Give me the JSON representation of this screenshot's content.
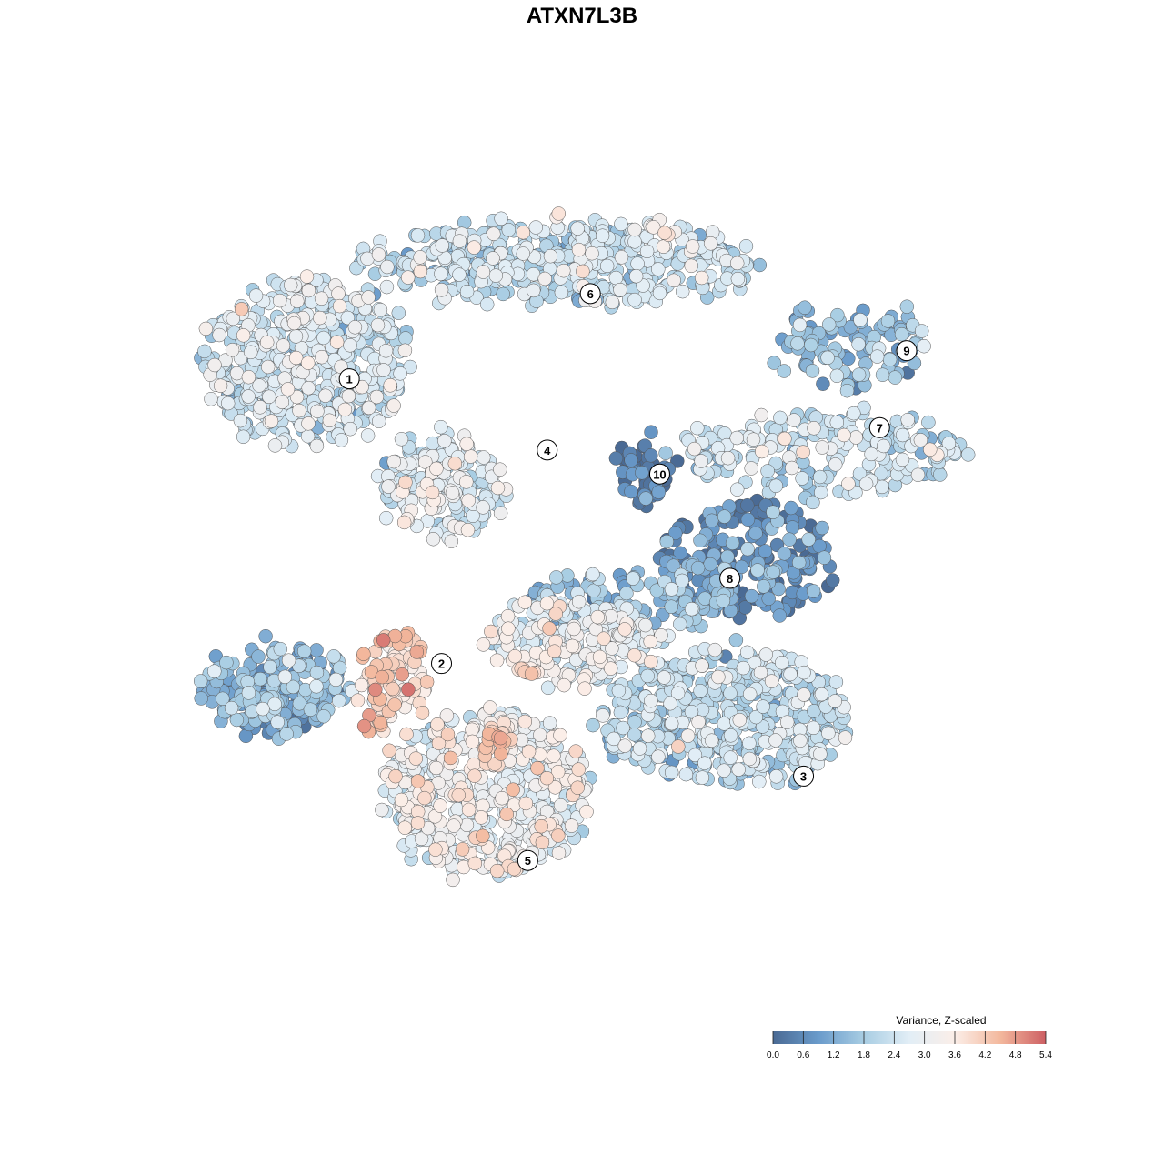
{
  "chart_data": {
    "type": "scatter",
    "title": "ATXN7L3B",
    "xlim": [
      0,
      100
    ],
    "ylim": [
      0,
      100
    ],
    "colorbar": {
      "title": "Variance, Z-scaled",
      "min": 0.0,
      "max": 5.4,
      "ticks": [
        "0.0",
        "0.6",
        "1.2",
        "1.8",
        "2.4",
        "3.0",
        "3.6",
        "4.2",
        "4.8",
        "5.4"
      ],
      "colors": [
        "#4a6a94",
        "#6a9bcb",
        "#a8cde3",
        "#e2eef6",
        "#fbeee8",
        "#f3b89d",
        "#cd5f63"
      ],
      "placement": "bottom-right"
    },
    "clusters": [
      {
        "label": "1",
        "x": 15,
        "y": 76,
        "rx": 12,
        "ry": 10,
        "value": 2.4,
        "n": 520
      },
      {
        "label": "2",
        "x": 11,
        "y": 37,
        "rx": 9,
        "ry": 5,
        "value": 1.4,
        "n": 170
      },
      {
        "label": "3",
        "x": 64,
        "y": 33,
        "rx": 15,
        "ry": 8,
        "value": 2.1,
        "n": 480
      },
      {
        "label": "4",
        "x": 31,
        "y": 61,
        "rx": 7,
        "ry": 6,
        "value": 2.7,
        "n": 190
      },
      {
        "label": "5",
        "x": 36,
        "y": 24,
        "rx": 12,
        "ry": 10,
        "value": 2.9,
        "n": 520
      },
      {
        "label": "6",
        "x": 45,
        "y": 88,
        "rx": 24,
        "ry": 5,
        "value": 2.2,
        "n": 480
      },
      {
        "label": "7",
        "x": 76,
        "y": 65,
        "rx": 17,
        "ry": 5,
        "value": 2.3,
        "n": 210
      },
      {
        "label": "8",
        "x": 67,
        "y": 52,
        "rx": 11,
        "ry": 7,
        "value": 0.8,
        "n": 210
      },
      {
        "label": "9",
        "x": 79,
        "y": 78,
        "rx": 9,
        "ry": 5,
        "value": 1.5,
        "n": 110
      },
      {
        "label": "10",
        "x": 55,
        "y": 63,
        "rx": 3,
        "ry": 4,
        "value": 0.3,
        "n": 50
      },
      {
        "label": "",
        "x": 46,
        "y": 42,
        "rx": 10,
        "ry": 5,
        "value": 2.8,
        "n": 240
      },
      {
        "label": "",
        "x": 11,
        "y": 34,
        "rx": 5,
        "ry": 3,
        "value": 0.7,
        "n": 70
      },
      {
        "label": "",
        "x": 25,
        "y": 37,
        "rx": 4,
        "ry": 7,
        "value": 3.9,
        "n": 90
      },
      {
        "label": "",
        "x": 53,
        "y": 47,
        "rx": 12,
        "ry": 3,
        "value": 1.5,
        "n": 120
      }
    ],
    "cluster_labels": [
      {
        "label": "1",
        "x": 19.8,
        "y": 74.0
      },
      {
        "label": "2",
        "x": 30.7,
        "y": 39.6
      },
      {
        "label": "3",
        "x": 73.5,
        "y": 26.0
      },
      {
        "label": "4",
        "x": 43.2,
        "y": 65.4
      },
      {
        "label": "5",
        "x": 40.9,
        "y": 15.8
      },
      {
        "label": "6",
        "x": 48.3,
        "y": 84.3
      },
      {
        "label": "7",
        "x": 82.5,
        "y": 68.1
      },
      {
        "label": "8",
        "x": 64.8,
        "y": 49.9
      },
      {
        "label": "9",
        "x": 85.7,
        "y": 77.4
      },
      {
        "label": "10",
        "x": 56.5,
        "y": 62.5
      }
    ],
    "hotspots": [
      {
        "x": 40,
        "y": 37,
        "value": 5.0
      },
      {
        "x": 37,
        "y": 30,
        "value": 4.9
      },
      {
        "x": 66,
        "y": 18,
        "value": 5.0
      },
      {
        "x": 27,
        "y": 44,
        "value": 4.5
      },
      {
        "x": 50,
        "y": 55,
        "value": 4.3
      },
      {
        "x": 44,
        "y": 95,
        "value": 4.0
      },
      {
        "x": 57,
        "y": 92,
        "value": 4.2
      }
    ],
    "grid": false
  }
}
